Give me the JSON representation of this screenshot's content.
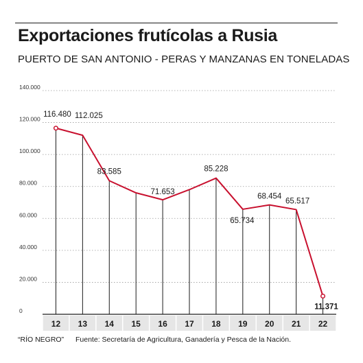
{
  "header": {
    "title": "Exportaciones frutícolas a Rusia",
    "subtitle": "PUERTO DE SAN ANTONIO - PERAS Y MANZANAS EN TONELADAS"
  },
  "footer": {
    "source_outlet": "“RÍO NEGRO”",
    "source_note": "Fuente: Secretaría de Agricultura, Ganadería y Pesca de la Nación."
  },
  "chart_data": {
    "type": "line",
    "categories": [
      "12",
      "13",
      "14",
      "15",
      "16",
      "17",
      "18",
      "19",
      "20",
      "21",
      "22"
    ],
    "values": [
      116480,
      112025,
      83585,
      76000,
      71653,
      78000,
      85228,
      65734,
      68454,
      65517,
      11371
    ],
    "data_labels": [
      "116.480",
      "112.025",
      "83.585",
      "",
      "71.653",
      "",
      "85.228",
      "65.734",
      "68.454",
      "65.517",
      "11.371"
    ],
    "title": "Exportaciones frutícolas a Rusia",
    "subtitle": "PUERTO DE SAN ANTONIO - PERAS Y MANZANAS EN TONELADAS",
    "xlabel": "",
    "ylabel": "",
    "ylim": [
      0,
      140000
    ],
    "yticks": [
      0,
      20000,
      40000,
      60000,
      80000,
      100000,
      120000,
      140000
    ],
    "ytick_labels": [
      "0",
      "20.000",
      "40.000",
      "60.000",
      "80.000",
      "100.000",
      "120.000",
      "140.000"
    ],
    "grid": true,
    "line_color": "#c8102e",
    "axis_band_color": "#e6e6e6",
    "marked_points": [
      "12",
      "22"
    ]
  }
}
